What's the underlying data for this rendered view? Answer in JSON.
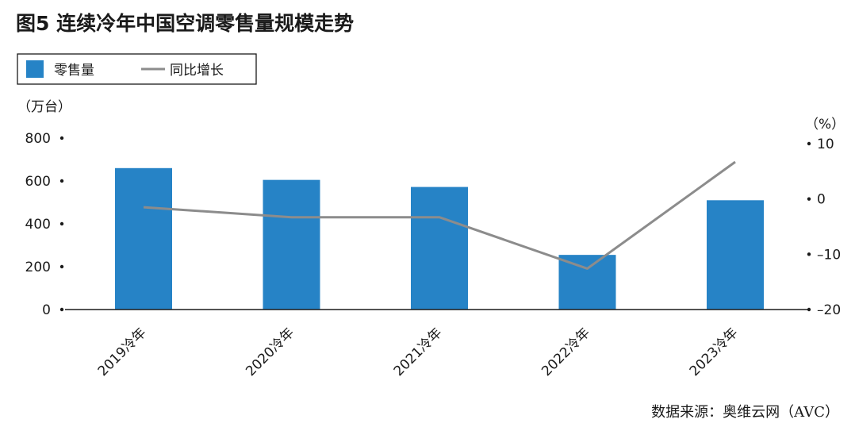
{
  "title": "图5   连续冷年中国空调零售量规模走势",
  "source": "数据来源：奥维云网（AVC）",
  "colors": {
    "bar": "#2683c6",
    "line": "#8c8c8c",
    "text": "#1a1a1a"
  },
  "chart_data": {
    "type": "bar",
    "categories": [
      "2019冷年",
      "2020冷年",
      "2021冷年",
      "2022冷年",
      "2023冷年"
    ],
    "series": [
      {
        "name": "零售量",
        "type": "bar",
        "axis": "left",
        "values": [
          660,
          605,
          572,
          255,
          510
        ]
      },
      {
        "name": "同比增长",
        "type": "line",
        "axis": "right",
        "values": [
          -1.5,
          -3.3,
          -3.3,
          -12.6,
          6.7
        ]
      }
    ],
    "y_left": {
      "label": "（万台）",
      "min": 0,
      "max": 800,
      "ticks": [
        0,
        200,
        400,
        600,
        800
      ]
    },
    "y_right": {
      "label": "（%）",
      "min": -20,
      "max": 10,
      "ticks": [
        10,
        0,
        -10,
        -20
      ],
      "tick_labels": [
        "10",
        "0",
        "–10",
        "–20"
      ]
    },
    "legend": "top-left",
    "grid": false
  }
}
